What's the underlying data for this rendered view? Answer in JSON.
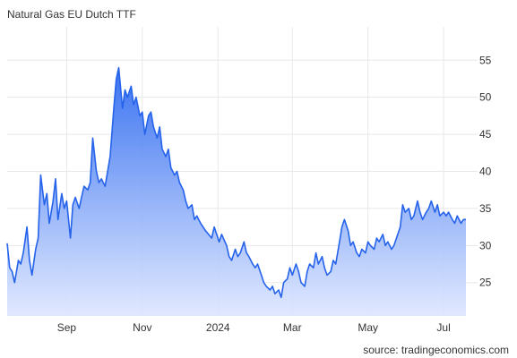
{
  "title": "Natural Gas EU Dutch TTF",
  "source": "source: tradingeconomics.com",
  "colors": {
    "line": "#2563eb",
    "fill_top": "#2f6bf0",
    "fill_bottom": "#dde6ff",
    "grid": "#e8e8e8",
    "text": "#333333"
  },
  "chart_data": {
    "type": "area",
    "title": "Natural Gas EU Dutch TTF",
    "xlabel": "",
    "ylabel": "",
    "x_tick_labels": [
      "Sep",
      "Nov",
      "2024",
      "Mar",
      "May",
      "Jul"
    ],
    "x_tick_dates": [
      "2023-09-01",
      "2023-11-01",
      "2024-01-01",
      "2024-03-01",
      "2024-05-01",
      "2024-07-01"
    ],
    "y_ticks": [
      25,
      30,
      35,
      40,
      45,
      50,
      55
    ],
    "xlim": [
      "2023-07-15",
      "2024-07-19"
    ],
    "ylim": [
      20.5,
      59.5
    ],
    "grid": true,
    "y_axis_position": "right",
    "series": [
      {
        "name": "",
        "points": [
          [
            "2023-07-15",
            30.3
          ],
          [
            "2023-07-17",
            27.0
          ],
          [
            "2023-07-19",
            26.5
          ],
          [
            "2023-07-21",
            25.0
          ],
          [
            "2023-07-24",
            28.0
          ],
          [
            "2023-07-26",
            27.5
          ],
          [
            "2023-07-28",
            29.0
          ],
          [
            "2023-07-31",
            32.5
          ],
          [
            "2023-08-02",
            28.0
          ],
          [
            "2023-08-04",
            26.0
          ],
          [
            "2023-08-07",
            29.5
          ],
          [
            "2023-08-09",
            31.0
          ],
          [
            "2023-08-11",
            39.5
          ],
          [
            "2023-08-14",
            35.5
          ],
          [
            "2023-08-16",
            37.0
          ],
          [
            "2023-08-18",
            33.0
          ],
          [
            "2023-08-21",
            36.0
          ],
          [
            "2023-08-23",
            39.0
          ],
          [
            "2023-08-25",
            33.5
          ],
          [
            "2023-08-28",
            37.0
          ],
          [
            "2023-08-30",
            35.0
          ],
          [
            "2023-09-01",
            36.0
          ],
          [
            "2023-09-04",
            31.0
          ],
          [
            "2023-09-06",
            35.5
          ],
          [
            "2023-09-08",
            36.5
          ],
          [
            "2023-09-11",
            35.0
          ],
          [
            "2023-09-13",
            36.5
          ],
          [
            "2023-09-15",
            38.0
          ],
          [
            "2023-09-18",
            37.5
          ],
          [
            "2023-09-20",
            38.5
          ],
          [
            "2023-09-22",
            44.5
          ],
          [
            "2023-09-25",
            40.0
          ],
          [
            "2023-09-27",
            38.5
          ],
          [
            "2023-09-29",
            39.0
          ],
          [
            "2023-10-02",
            38.0
          ],
          [
            "2023-10-04",
            40.0
          ],
          [
            "2023-10-06",
            42.0
          ],
          [
            "2023-10-09",
            48.5
          ],
          [
            "2023-10-11",
            52.5
          ],
          [
            "2023-10-13",
            54.0
          ],
          [
            "2023-10-16",
            48.5
          ],
          [
            "2023-10-18",
            51.0
          ],
          [
            "2023-10-20",
            50.0
          ],
          [
            "2023-10-23",
            51.5
          ],
          [
            "2023-10-25",
            49.0
          ],
          [
            "2023-10-27",
            50.0
          ],
          [
            "2023-10-30",
            47.5
          ],
          [
            "2023-11-01",
            48.0
          ],
          [
            "2023-11-03",
            45.0
          ],
          [
            "2023-11-06",
            47.5
          ],
          [
            "2023-11-08",
            48.0
          ],
          [
            "2023-11-10",
            46.0
          ],
          [
            "2023-11-13",
            44.5
          ],
          [
            "2023-11-15",
            46.0
          ],
          [
            "2023-11-17",
            43.0
          ],
          [
            "2023-11-20",
            42.0
          ],
          [
            "2023-11-22",
            43.0
          ],
          [
            "2023-11-24",
            40.5
          ],
          [
            "2023-11-27",
            39.5
          ],
          [
            "2023-11-29",
            40.0
          ],
          [
            "2023-12-01",
            38.5
          ],
          [
            "2023-12-04",
            37.5
          ],
          [
            "2023-12-06",
            36.0
          ],
          [
            "2023-12-08",
            35.0
          ],
          [
            "2023-12-11",
            35.5
          ],
          [
            "2023-12-13",
            33.5
          ],
          [
            "2023-12-15",
            34.0
          ],
          [
            "2023-12-18",
            33.0
          ],
          [
            "2023-12-20",
            32.5
          ],
          [
            "2023-12-22",
            32.0
          ],
          [
            "2023-12-27",
            31.0
          ],
          [
            "2023-12-29",
            32.5
          ],
          [
            "2024-01-02",
            30.5
          ],
          [
            "2024-01-04",
            31.5
          ],
          [
            "2024-01-08",
            30.0
          ],
          [
            "2024-01-10",
            28.5
          ],
          [
            "2024-01-12",
            28.0
          ],
          [
            "2024-01-15",
            29.5
          ],
          [
            "2024-01-17",
            28.5
          ],
          [
            "2024-01-19",
            29.0
          ],
          [
            "2024-01-22",
            30.5
          ],
          [
            "2024-01-24",
            29.0
          ],
          [
            "2024-01-26",
            28.5
          ],
          [
            "2024-01-29",
            27.5
          ],
          [
            "2024-01-31",
            27.0
          ],
          [
            "2024-02-02",
            27.5
          ],
          [
            "2024-02-05",
            26.0
          ],
          [
            "2024-02-07",
            25.0
          ],
          [
            "2024-02-09",
            24.5
          ],
          [
            "2024-02-12",
            24.0
          ],
          [
            "2024-02-14",
            24.5
          ],
          [
            "2024-02-16",
            23.5
          ],
          [
            "2024-02-19",
            24.0
          ],
          [
            "2024-02-21",
            23.0
          ],
          [
            "2024-02-23",
            25.0
          ],
          [
            "2024-02-26",
            25.5
          ],
          [
            "2024-02-28",
            27.0
          ],
          [
            "2024-03-01",
            26.0
          ],
          [
            "2024-03-04",
            27.5
          ],
          [
            "2024-03-06",
            26.5
          ],
          [
            "2024-03-08",
            25.0
          ],
          [
            "2024-03-11",
            24.5
          ],
          [
            "2024-03-13",
            26.5
          ],
          [
            "2024-03-15",
            27.5
          ],
          [
            "2024-03-18",
            27.0
          ],
          [
            "2024-03-20",
            29.0
          ],
          [
            "2024-03-22",
            27.5
          ],
          [
            "2024-03-25",
            28.5
          ],
          [
            "2024-03-27",
            27.0
          ],
          [
            "2024-03-29",
            26.0
          ],
          [
            "2024-04-01",
            26.5
          ],
          [
            "2024-04-03",
            28.0
          ],
          [
            "2024-04-05",
            27.5
          ],
          [
            "2024-04-08",
            30.5
          ],
          [
            "2024-04-10",
            32.5
          ],
          [
            "2024-04-12",
            33.5
          ],
          [
            "2024-04-15",
            32.0
          ],
          [
            "2024-04-17",
            30.0
          ],
          [
            "2024-04-19",
            30.5
          ],
          [
            "2024-04-22",
            29.0
          ],
          [
            "2024-04-24",
            28.5
          ],
          [
            "2024-04-26",
            29.5
          ],
          [
            "2024-04-29",
            29.0
          ],
          [
            "2024-05-01",
            30.5
          ],
          [
            "2024-05-03",
            30.0
          ],
          [
            "2024-05-06",
            29.5
          ],
          [
            "2024-05-08",
            31.0
          ],
          [
            "2024-05-10",
            30.5
          ],
          [
            "2024-05-13",
            31.5
          ],
          [
            "2024-05-15",
            30.0
          ],
          [
            "2024-05-17",
            30.5
          ],
          [
            "2024-05-20",
            29.5
          ],
          [
            "2024-05-22",
            30.0
          ],
          [
            "2024-05-24",
            31.0
          ],
          [
            "2024-05-27",
            32.5
          ],
          [
            "2024-05-29",
            35.5
          ],
          [
            "2024-05-31",
            34.5
          ],
          [
            "2024-06-03",
            35.0
          ],
          [
            "2024-06-05",
            33.5
          ],
          [
            "2024-06-07",
            34.0
          ],
          [
            "2024-06-10",
            36.0
          ],
          [
            "2024-06-12",
            34.5
          ],
          [
            "2024-06-14",
            33.5
          ],
          [
            "2024-06-17",
            34.5
          ],
          [
            "2024-06-19",
            35.0
          ],
          [
            "2024-06-21",
            36.0
          ],
          [
            "2024-06-24",
            34.5
          ],
          [
            "2024-06-26",
            35.5
          ],
          [
            "2024-06-28",
            34.0
          ],
          [
            "2024-07-01",
            34.5
          ],
          [
            "2024-07-03",
            34.0
          ],
          [
            "2024-07-05",
            34.5
          ],
          [
            "2024-07-08",
            33.5
          ],
          [
            "2024-07-10",
            33.0
          ],
          [
            "2024-07-12",
            34.0
          ],
          [
            "2024-07-15",
            33.0
          ],
          [
            "2024-07-17",
            33.5
          ],
          [
            "2024-07-19",
            33.5
          ]
        ]
      }
    ]
  }
}
